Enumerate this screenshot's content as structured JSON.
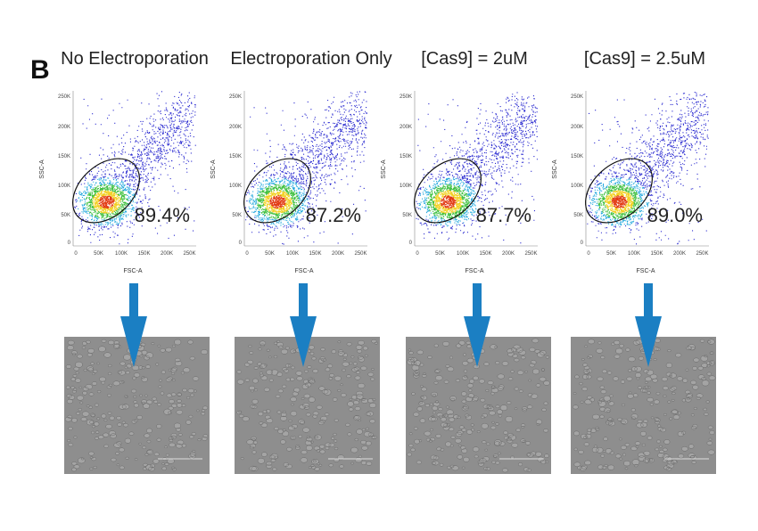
{
  "panel_label": "B",
  "panels": [
    {
      "title": "No Electroporation",
      "gate_percent": "89.4%"
    },
    {
      "title": "Electroporation Only",
      "gate_percent": "87.2%"
    },
    {
      "title": "[Cas9] = 2uM",
      "gate_percent": "87.7%"
    },
    {
      "title": "[Cas9] = 2.5uM",
      "gate_percent": "89.0%"
    }
  ],
  "axes": {
    "y_label": "SSC-A",
    "x_label": "FSC-A",
    "y_ticks": [
      "250K",
      "200K",
      "150K",
      "100K",
      "50K",
      "0"
    ],
    "x_ticks": [
      "0",
      "50K",
      "100K",
      "150K",
      "200K",
      "250K"
    ]
  }
}
